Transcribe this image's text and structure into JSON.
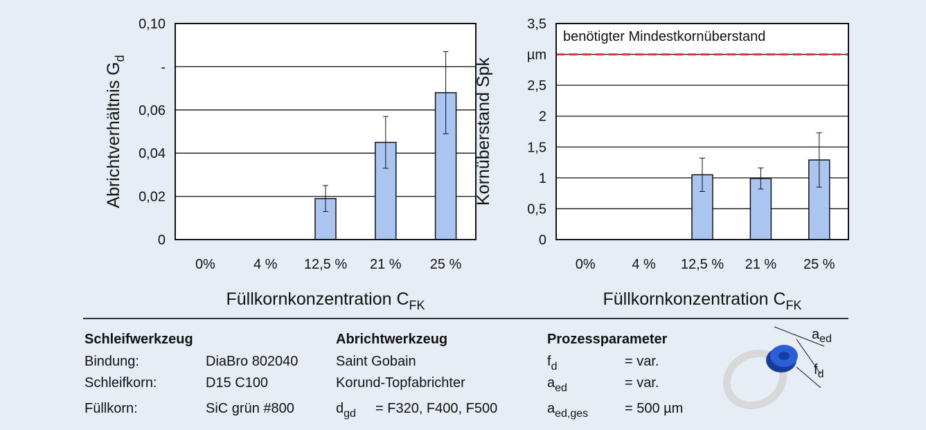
{
  "chart_data": [
    {
      "type": "bar",
      "y_label": {
        "text": "Abrichtverhältnis G",
        "sub": "d"
      },
      "x_label": {
        "text": "Füllkornkonzentration C",
        "sub": "FK"
      },
      "categories": [
        "0%",
        "4 %",
        "12,5 %",
        "21 %",
        "25 %"
      ],
      "values": [
        null,
        null,
        0.019,
        0.045,
        0.068
      ],
      "errors": [
        null,
        null,
        0.006,
        0.012,
        0.019
      ],
      "color": "#a9c5f0",
      "ylim": [
        0,
        0.1
      ],
      "yticks": [
        0,
        {
          "value": 0.02,
          "label": "0,02"
        },
        {
          "value": 0.04,
          "label": "0,04"
        },
        {
          "value": 0.06,
          "label": "0,06"
        },
        {
          "value": 0.08,
          "label": "-"
        },
        {
          "value": 0.1,
          "label": "0,10"
        }
      ],
      "grid": true
    },
    {
      "type": "bar",
      "y_label": {
        "text": "Kornüberstand Spk"
      },
      "x_label": {
        "text": "Füllkornkonzentration C",
        "sub": "FK"
      },
      "categories": [
        "0%",
        "4 %",
        "12,5 %",
        "21 %",
        "25 %"
      ],
      "values": [
        null,
        null,
        1.05,
        0.99,
        1.29
      ],
      "errors": [
        null,
        null,
        0.27,
        0.17,
        0.44
      ],
      "color": "#a9c5f0",
      "ylim": [
        0,
        3.5
      ],
      "yticks": [
        0,
        {
          "value": 0.5,
          "label": "0,5"
        },
        1,
        {
          "value": 1.5,
          "label": "1,5"
        },
        2,
        {
          "value": 2.5,
          "label": "2,5"
        },
        {
          "value": 3,
          "label": "µm"
        },
        {
          "value": 3.5,
          "label": "3,5"
        }
      ],
      "grid": true,
      "reference_line": {
        "value": 3,
        "label": "benötigter Mindestkornüberstand",
        "color": "#e03030"
      }
    }
  ],
  "parameters": {
    "schleifwerkzeug": {
      "heading": "Schleifwerkzeug",
      "rows": [
        [
          "Bindung:",
          "DiaBro 802040"
        ],
        [
          "Schleifkorn:",
          "D15 C100"
        ],
        [
          "Füllkorn:",
          "SiC grün #800"
        ]
      ]
    },
    "abrichtwerkzeug": {
      "heading": "Abrichtwerkzeug",
      "rows": [
        "Saint Gobain",
        "Korund-Topfabrichter"
      ],
      "dgd": {
        "base": "d",
        "sub": "gd",
        "value": "= F320, F400, F500"
      }
    },
    "prozessparameter": {
      "heading": "Prozessparameter",
      "rows": [
        {
          "base": "f",
          "sub": "d",
          "value": "= var."
        },
        {
          "base": "a",
          "sub": "ed",
          "value": "= var."
        },
        {
          "base": "a",
          "sub": "ed,ges",
          "value": "= 500 µm"
        }
      ]
    },
    "icon": {
      "aed": {
        "base": "a",
        "sub": "ed"
      },
      "fd": {
        "base": "f",
        "sub": "d"
      }
    }
  }
}
